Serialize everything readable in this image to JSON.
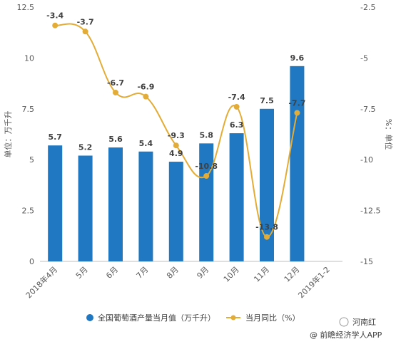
{
  "chart_data": {
    "type": "bar",
    "categories": [
      "2018年4月",
      "5月",
      "6月",
      "7月",
      "8月",
      "9月",
      "10月",
      "11月",
      "12月",
      "2019年1-2"
    ],
    "series": [
      {
        "name": "全国葡萄酒产量当月值（万千升）",
        "type": "bar",
        "axis": "left",
        "color": "#1f78c1",
        "values": [
          5.7,
          5.2,
          5.6,
          5.4,
          4.9,
          5.8,
          6.3,
          7.5,
          9.6,
          null
        ],
        "labels": [
          "5.7",
          "5.2",
          "5.6",
          "5.4",
          "4.9",
          "5.8",
          "6.3",
          "7.5",
          "9.6",
          ""
        ]
      },
      {
        "name": "当月同比（%）",
        "type": "line",
        "axis": "right",
        "color": "#e3ac37",
        "values": [
          -3.4,
          -3.7,
          -6.7,
          -6.9,
          -9.3,
          -10.8,
          -7.4,
          -13.8,
          -7.7,
          null
        ],
        "labels": [
          "-3.4",
          "-3.7",
          "-6.7",
          "-6.9",
          "-9.3",
          "-10.8",
          "-7.4",
          "-13.8",
          "-7.7",
          ""
        ]
      }
    ],
    "ylabel": "单位：万千升",
    "y2label": "%：单位",
    "ylim": [
      0,
      12.5
    ],
    "y2lim": [
      -15,
      -2.5
    ],
    "yticks": [
      "0",
      "2.5",
      "5",
      "7.5",
      "10",
      "12.5"
    ],
    "y2ticks": [
      "-15",
      "-12.5",
      "-10",
      "-7.5",
      "-5",
      "-2.5"
    ],
    "grid": false,
    "legend_position": "bottom"
  },
  "footer": {
    "watermark_name": "河南红",
    "source": "@ 前瞻经济学人APP"
  }
}
